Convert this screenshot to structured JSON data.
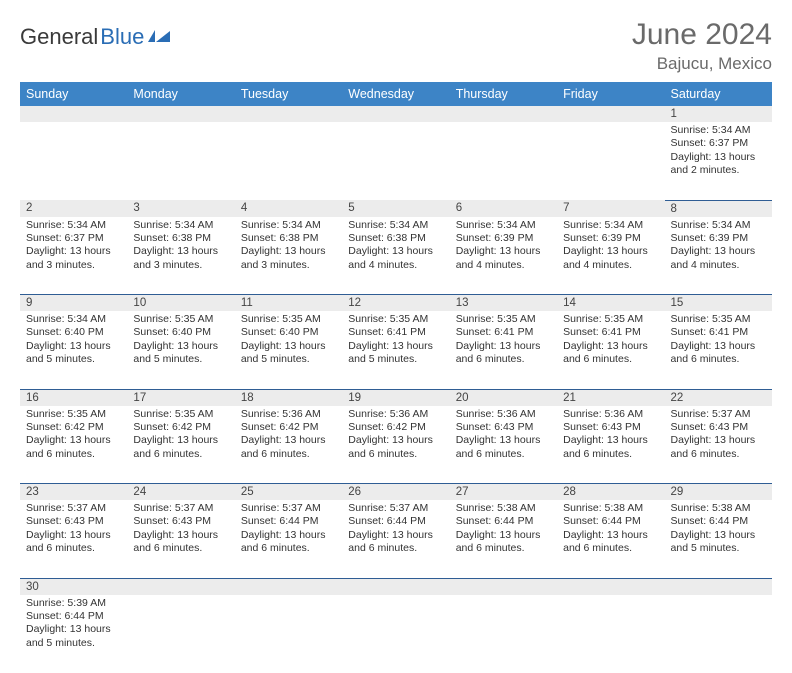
{
  "brand": {
    "part1": "General",
    "part2": "Blue"
  },
  "header": {
    "month_title": "June 2024",
    "location": "Bajucu, Mexico"
  },
  "colors": {
    "header_bg": "#3d84c6",
    "header_text": "#ffffff",
    "daynum_bg": "#ececec",
    "row_border": "#2f5d94",
    "title_color": "#6a6a6a",
    "brand_blue": "#2a6db5"
  },
  "calendar": {
    "day_headers": [
      "Sunday",
      "Monday",
      "Tuesday",
      "Wednesday",
      "Thursday",
      "Friday",
      "Saturday"
    ],
    "weeks": [
      [
        null,
        null,
        null,
        null,
        null,
        null,
        {
          "num": "1",
          "sunrise": "Sunrise: 5:34 AM",
          "sunset": "Sunset: 6:37 PM",
          "daylight": "Daylight: 13 hours and 2 minutes."
        }
      ],
      [
        {
          "num": "2",
          "sunrise": "Sunrise: 5:34 AM",
          "sunset": "Sunset: 6:37 PM",
          "daylight": "Daylight: 13 hours and 3 minutes."
        },
        {
          "num": "3",
          "sunrise": "Sunrise: 5:34 AM",
          "sunset": "Sunset: 6:38 PM",
          "daylight": "Daylight: 13 hours and 3 minutes."
        },
        {
          "num": "4",
          "sunrise": "Sunrise: 5:34 AM",
          "sunset": "Sunset: 6:38 PM",
          "daylight": "Daylight: 13 hours and 3 minutes."
        },
        {
          "num": "5",
          "sunrise": "Sunrise: 5:34 AM",
          "sunset": "Sunset: 6:38 PM",
          "daylight": "Daylight: 13 hours and 4 minutes."
        },
        {
          "num": "6",
          "sunrise": "Sunrise: 5:34 AM",
          "sunset": "Sunset: 6:39 PM",
          "daylight": "Daylight: 13 hours and 4 minutes."
        },
        {
          "num": "7",
          "sunrise": "Sunrise: 5:34 AM",
          "sunset": "Sunset: 6:39 PM",
          "daylight": "Daylight: 13 hours and 4 minutes."
        },
        {
          "num": "8",
          "sunrise": "Sunrise: 5:34 AM",
          "sunset": "Sunset: 6:39 PM",
          "daylight": "Daylight: 13 hours and 4 minutes."
        }
      ],
      [
        {
          "num": "9",
          "sunrise": "Sunrise: 5:34 AM",
          "sunset": "Sunset: 6:40 PM",
          "daylight": "Daylight: 13 hours and 5 minutes."
        },
        {
          "num": "10",
          "sunrise": "Sunrise: 5:35 AM",
          "sunset": "Sunset: 6:40 PM",
          "daylight": "Daylight: 13 hours and 5 minutes."
        },
        {
          "num": "11",
          "sunrise": "Sunrise: 5:35 AM",
          "sunset": "Sunset: 6:40 PM",
          "daylight": "Daylight: 13 hours and 5 minutes."
        },
        {
          "num": "12",
          "sunrise": "Sunrise: 5:35 AM",
          "sunset": "Sunset: 6:41 PM",
          "daylight": "Daylight: 13 hours and 5 minutes."
        },
        {
          "num": "13",
          "sunrise": "Sunrise: 5:35 AM",
          "sunset": "Sunset: 6:41 PM",
          "daylight": "Daylight: 13 hours and 6 minutes."
        },
        {
          "num": "14",
          "sunrise": "Sunrise: 5:35 AM",
          "sunset": "Sunset: 6:41 PM",
          "daylight": "Daylight: 13 hours and 6 minutes."
        },
        {
          "num": "15",
          "sunrise": "Sunrise: 5:35 AM",
          "sunset": "Sunset: 6:41 PM",
          "daylight": "Daylight: 13 hours and 6 minutes."
        }
      ],
      [
        {
          "num": "16",
          "sunrise": "Sunrise: 5:35 AM",
          "sunset": "Sunset: 6:42 PM",
          "daylight": "Daylight: 13 hours and 6 minutes."
        },
        {
          "num": "17",
          "sunrise": "Sunrise: 5:35 AM",
          "sunset": "Sunset: 6:42 PM",
          "daylight": "Daylight: 13 hours and 6 minutes."
        },
        {
          "num": "18",
          "sunrise": "Sunrise: 5:36 AM",
          "sunset": "Sunset: 6:42 PM",
          "daylight": "Daylight: 13 hours and 6 minutes."
        },
        {
          "num": "19",
          "sunrise": "Sunrise: 5:36 AM",
          "sunset": "Sunset: 6:42 PM",
          "daylight": "Daylight: 13 hours and 6 minutes."
        },
        {
          "num": "20",
          "sunrise": "Sunrise: 5:36 AM",
          "sunset": "Sunset: 6:43 PM",
          "daylight": "Daylight: 13 hours and 6 minutes."
        },
        {
          "num": "21",
          "sunrise": "Sunrise: 5:36 AM",
          "sunset": "Sunset: 6:43 PM",
          "daylight": "Daylight: 13 hours and 6 minutes."
        },
        {
          "num": "22",
          "sunrise": "Sunrise: 5:37 AM",
          "sunset": "Sunset: 6:43 PM",
          "daylight": "Daylight: 13 hours and 6 minutes."
        }
      ],
      [
        {
          "num": "23",
          "sunrise": "Sunrise: 5:37 AM",
          "sunset": "Sunset: 6:43 PM",
          "daylight": "Daylight: 13 hours and 6 minutes."
        },
        {
          "num": "24",
          "sunrise": "Sunrise: 5:37 AM",
          "sunset": "Sunset: 6:43 PM",
          "daylight": "Daylight: 13 hours and 6 minutes."
        },
        {
          "num": "25",
          "sunrise": "Sunrise: 5:37 AM",
          "sunset": "Sunset: 6:44 PM",
          "daylight": "Daylight: 13 hours and 6 minutes."
        },
        {
          "num": "26",
          "sunrise": "Sunrise: 5:37 AM",
          "sunset": "Sunset: 6:44 PM",
          "daylight": "Daylight: 13 hours and 6 minutes."
        },
        {
          "num": "27",
          "sunrise": "Sunrise: 5:38 AM",
          "sunset": "Sunset: 6:44 PM",
          "daylight": "Daylight: 13 hours and 6 minutes."
        },
        {
          "num": "28",
          "sunrise": "Sunrise: 5:38 AM",
          "sunset": "Sunset: 6:44 PM",
          "daylight": "Daylight: 13 hours and 6 minutes."
        },
        {
          "num": "29",
          "sunrise": "Sunrise: 5:38 AM",
          "sunset": "Sunset: 6:44 PM",
          "daylight": "Daylight: 13 hours and 5 minutes."
        }
      ],
      [
        {
          "num": "30",
          "sunrise": "Sunrise: 5:39 AM",
          "sunset": "Sunset: 6:44 PM",
          "daylight": "Daylight: 13 hours and 5 minutes."
        },
        null,
        null,
        null,
        null,
        null,
        null
      ]
    ]
  }
}
